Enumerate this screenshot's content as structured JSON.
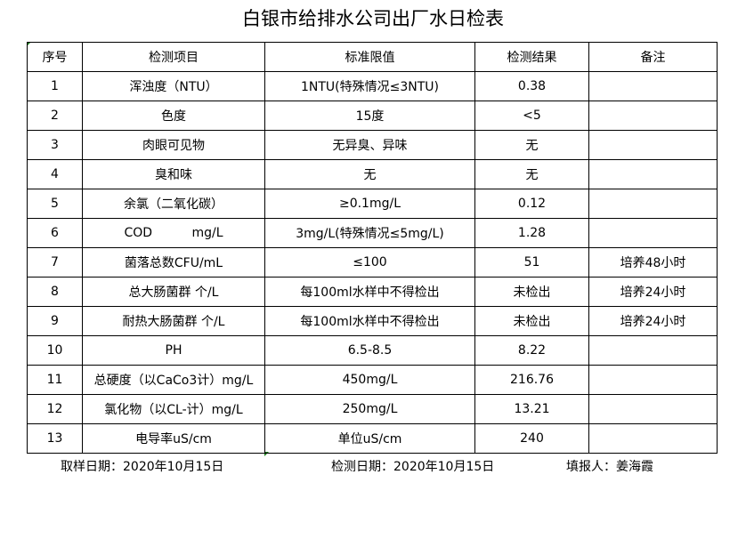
{
  "title": "白银市给排水公司出厂水日检表",
  "headers": [
    "序号",
    "检测项目",
    "标准限值",
    "检测结果",
    "备注"
  ],
  "rows": [
    [
      "1",
      "浑浊度（NTU）",
      "1NTU(特殊情况≤3NTU)",
      "0.38",
      ""
    ],
    [
      "2",
      "色度",
      "15度",
      "<5",
      ""
    ],
    [
      "3",
      "肉眼可见物",
      "无异臭、异味",
      "无",
      ""
    ],
    [
      "4",
      "臭和味",
      "无",
      "无",
      ""
    ],
    [
      "5",
      "余氯（二氧化碳）",
      "≥0.1mg/L",
      "0.12",
      ""
    ],
    [
      "6",
      "COD          mg/L",
      "3mg/L(特殊情况≤5mg/L)",
      "1.28",
      ""
    ],
    [
      "7",
      "菌落总数CFU/mL",
      "≤100",
      "51",
      "培养48小时"
    ],
    [
      "8",
      "总大肠菌群 个/L",
      "每100ml水样中不得检出",
      "未检出",
      "培养24小时"
    ],
    [
      "9",
      "耐热大肠菌群 个/L",
      "每100ml水样中不得检出",
      "未检出",
      "培养24小时"
    ],
    [
      "10",
      "PH",
      "6.5-8.5",
      "8.22",
      ""
    ],
    [
      "11",
      "总硬度（以CaCo3计）mg/L",
      "450mg/L",
      "216.76",
      ""
    ],
    [
      "12",
      "氯化物（以CL-计）mg/L",
      "250mg/L",
      "13.21",
      ""
    ],
    [
      "13",
      "电导率uS/cm",
      "单位uS/cm",
      "240",
      ""
    ]
  ],
  "footer": {
    "sample_date": "取样日期：2020年10月15日",
    "test_date": "检测日期：2020年10月15日",
    "reporter": "填报人：姜海霞"
  }
}
